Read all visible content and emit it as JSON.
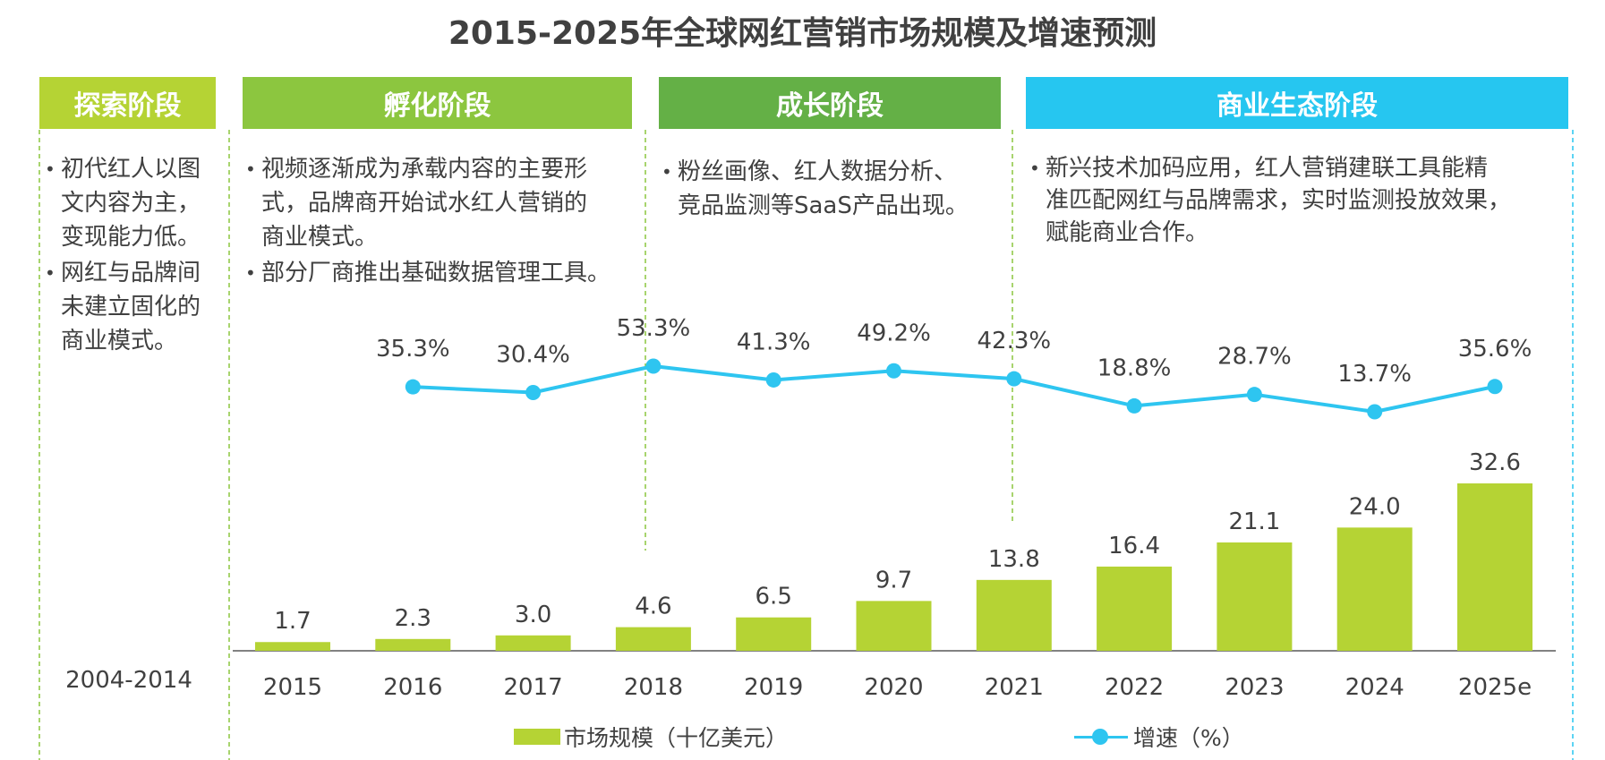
{
  "colors": {
    "phase_1": "#b5d334",
    "phase_2": "#8cc63f",
    "phase_3": "#64b046",
    "phase_4": "#26c6f0",
    "bar": "#b5d334",
    "line": "#2ec5f0",
    "divider_green": "#8cc63f",
    "divider_blue": "#26c6f0"
  },
  "chart_data": {
    "type": "bar",
    "title": "2015-2025年全球网红营销市场规模及增速预测",
    "categories": [
      "2015",
      "2016",
      "2017",
      "2018",
      "2019",
      "2020",
      "2021",
      "2022",
      "2023",
      "2024",
      "2025e"
    ],
    "series": [
      {
        "name": "市场规模（十亿美元）",
        "type": "bar",
        "values": [
          1.7,
          2.3,
          3.0,
          4.6,
          6.5,
          9.7,
          13.8,
          16.4,
          21.1,
          24.0,
          32.6
        ],
        "labels": [
          "1.7",
          "2.3",
          "3.0",
          "4.6",
          "6.5",
          "9.7",
          "13.8",
          "16.4",
          "21.1",
          "24.0",
          "32.6"
        ]
      },
      {
        "name": "增速（%）",
        "type": "line",
        "values": [
          null,
          35.3,
          30.4,
          53.3,
          41.3,
          49.2,
          42.3,
          18.8,
          28.7,
          13.7,
          35.6
        ],
        "labels": [
          null,
          "35.3%",
          "30.4%",
          "53.3%",
          "41.3%",
          "49.2%",
          "42.3%",
          "18.8%",
          "28.7%",
          "13.7%",
          "35.6%"
        ]
      }
    ],
    "first_period_label": "2004-2014",
    "legend": [
      "市场规模（十亿美元）",
      "增速（%）"
    ],
    "legend_position": "bottom"
  },
  "phases": [
    {
      "name": "探索阶段",
      "bullets": [
        "初代红人以图\n文内容为主，\n变现能力低。",
        "网红与品牌间\n未建立固化的\n商业模式。"
      ]
    },
    {
      "name": "孵化阶段",
      "bullets": [
        "视频逐渐成为承载内容的主要形\n式，品牌商开始试水红人营销的\n商业模式。",
        "部分厂商推出基础数据管理工具。"
      ]
    },
    {
      "name": "成长阶段",
      "bullets": [
        "粉丝画像、红人数据分析、\n竞品监测等SaaS产品出现。"
      ]
    },
    {
      "name": "商业生态阶段",
      "bullets": [
        "新兴技术加码应用，红人营销建联工具能精\n准匹配网红与品牌需求，实时监测投放效果，\n赋能商业合作。"
      ]
    }
  ]
}
